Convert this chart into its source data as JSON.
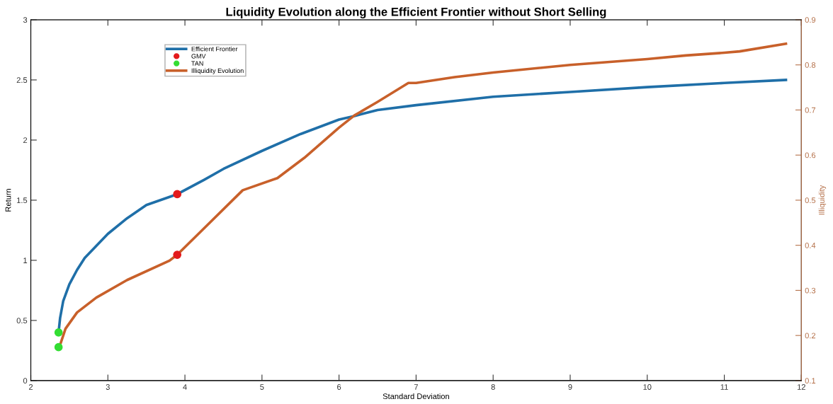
{
  "chart_data": {
    "type": "line",
    "title": "Liquidity Evolution along the Efficient Frontier without Short Selling",
    "xlabel": "Standard Deviation",
    "ylabel": "Return",
    "y2label": "Illiquidity",
    "xlim": [
      2,
      12
    ],
    "xticks": [
      2,
      3,
      4,
      5,
      6,
      7,
      8,
      9,
      10,
      11,
      12
    ],
    "ylim": [
      0,
      3
    ],
    "yticks": [
      0,
      0.5,
      1,
      1.5,
      2,
      2.5,
      3
    ],
    "y2lim": [
      0.1,
      0.9
    ],
    "y2ticks": [
      0.1,
      0.2,
      0.3,
      0.4,
      0.5,
      0.6,
      0.7,
      0.8,
      0.9
    ],
    "grid": false,
    "legend": "top left",
    "line_style": "solid",
    "marker": "none",
    "series": [
      {
        "name": "Efficient Frontier",
        "color": "#1f6fa8",
        "x": [
          2.36,
          2.38,
          2.42,
          2.5,
          2.6,
          2.7,
          2.85,
          3.0,
          3.25,
          3.5,
          3.9,
          4.25,
          4.5,
          5.0,
          5.5,
          6.0,
          6.2,
          6.5,
          7.0,
          8.0,
          9.0,
          10.0,
          11.0,
          11.8
        ],
        "values": [
          0.4,
          0.52,
          0.66,
          0.8,
          0.92,
          1.02,
          1.12,
          1.22,
          1.35,
          1.46,
          1.55,
          1.67,
          1.76,
          1.91,
          2.05,
          2.17,
          2.2,
          2.25,
          2.29,
          2.36,
          2.4,
          2.44,
          2.475,
          2.5
        ]
      },
      {
        "name": "GMV",
        "type": "scatter",
        "marker": "circle",
        "color": "#e31a1c",
        "x": [
          3.9
        ],
        "values": [
          1.55
        ]
      },
      {
        "name": "TAN",
        "type": "scatter",
        "marker": "circle",
        "color": "#33dd33",
        "x": [
          2.36
        ],
        "values": [
          0.4
        ]
      },
      {
        "name": "Illiquidity Evolution",
        "axis": "y2",
        "color": "#c8602a",
        "x": [
          2.37,
          2.45,
          2.6,
          2.85,
          3.25,
          3.8,
          3.9,
          4.25,
          4.75,
          5.2,
          5.55,
          6.0,
          6.2,
          6.5,
          6.9,
          7.0,
          7.5,
          8.0,
          9.0,
          10.0,
          10.5,
          11.0,
          11.2,
          11.8
        ],
        "values": [
          0.174,
          0.215,
          0.251,
          0.284,
          0.323,
          0.366,
          0.379,
          0.438,
          0.522,
          0.549,
          0.594,
          0.661,
          0.688,
          0.718,
          0.76,
          0.76,
          0.773,
          0.783,
          0.8,
          0.813,
          0.821,
          0.827,
          0.83,
          0.847
        ]
      },
      {
        "type": "scatter",
        "axis": "y2",
        "marker": "circle",
        "color": "#e31a1c",
        "x": [
          3.9
        ],
        "values": [
          0.379
        ]
      },
      {
        "type": "scatter",
        "axis": "y2",
        "marker": "circle",
        "color": "#33dd33",
        "x": [
          2.36
        ],
        "values": [
          0.174
        ]
      }
    ]
  }
}
